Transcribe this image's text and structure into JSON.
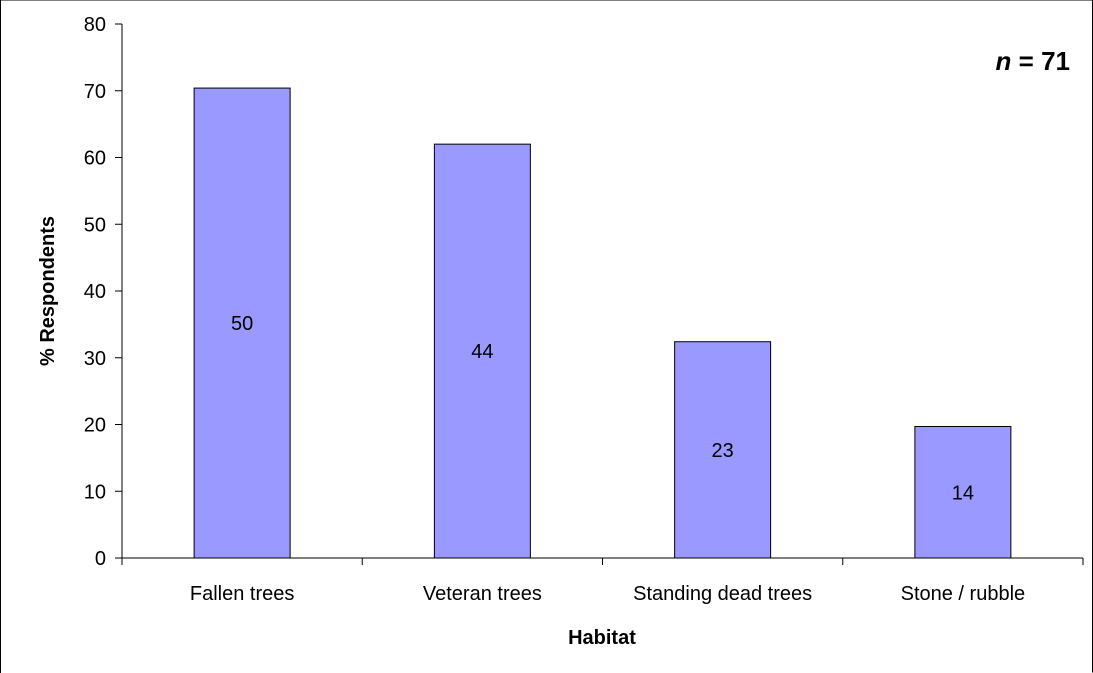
{
  "chart_data": {
    "type": "bar",
    "title": "",
    "xlabel": "Habitat",
    "ylabel": "% Respondents",
    "ylim": [
      0,
      80
    ],
    "yticks": [
      0,
      10,
      20,
      30,
      40,
      50,
      60,
      70,
      80
    ],
    "categories": [
      "Fallen trees",
      "Veteran trees",
      "Standing dead trees",
      "Stone / rubble"
    ],
    "values": [
      70.4,
      62.0,
      32.4,
      19.7
    ],
    "data_labels": [
      "50",
      "44",
      "23",
      "14"
    ],
    "annotation": {
      "italic_part": "n",
      "rest": " = 71"
    },
    "grid": false,
    "legend": "none",
    "colors": {
      "bar_fill": "#9999ff",
      "bar_stroke": "#000000",
      "axis": "#000000",
      "frame": "#000000"
    }
  }
}
